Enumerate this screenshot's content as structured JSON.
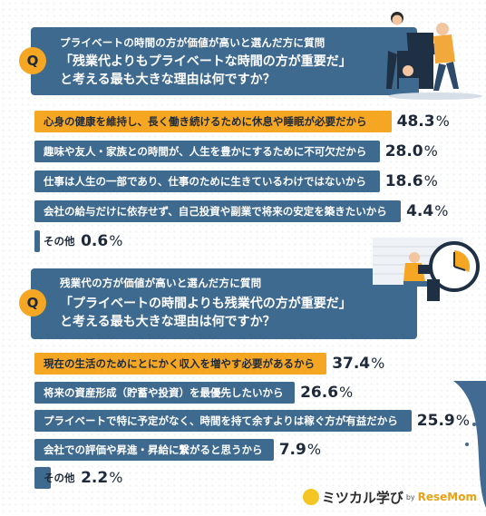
{
  "colors": {
    "dark_blue": "#3f6a8f",
    "orange": "#f5a623",
    "text": "#1e2a3a"
  },
  "q1": {
    "badge": "Q",
    "subtitle": "プライベートの時間の方が価値が高いと選んだ方に質問",
    "line1": "「残業代よりもプライベートな時間の方が重要だ」",
    "line2": "と考える最も大きな理由は何ですか？"
  },
  "q2": {
    "badge": "Q",
    "subtitle": "残業代の方が価値が高いと選んだ方に質問",
    "line1": "「プライベートの時間よりも残業代の方が重要だ」",
    "line2": "と考える最も大きな理由は何ですか？"
  },
  "logo": {
    "brand": "ミツカル学び",
    "by": "by",
    "sub": "ReseMom"
  },
  "chart_data": [
    {
      "type": "bar",
      "orientation": "horizontal",
      "categories": [
        "心身の健康を維持し、長く働き続けるために休息や睡眠が必要だから",
        "趣味や友人・家族との時間が、人生を豊かにするために不可欠だから",
        "仕事は人生の一部であり、仕事のために生きているわけではないから",
        "会社の給与だけに依存せず、自己投資や副業で将来の安定を築きたいから",
        "その他"
      ],
      "values": [
        48.3,
        28.0,
        18.6,
        4.4,
        0.6
      ],
      "value_labels": [
        "48.3",
        "28.0",
        "18.6",
        "4.4",
        "0.6"
      ],
      "unit": "%"
    },
    {
      "type": "bar",
      "orientation": "horizontal",
      "categories": [
        "現在の生活のためにとにかく収入を増やす必要があるから",
        "将来の資産形成（貯蓄や投資）を最優先したいから",
        "プライベートで特に予定がなく、時間を持て余すよりは稼ぐ方が有益だから",
        "会社での評価や昇進・昇給に繋がると思うから",
        "その他"
      ],
      "values": [
        37.4,
        26.6,
        25.9,
        7.9,
        2.2
      ],
      "value_labels": [
        "37.4",
        "26.6",
        "25.9",
        "7.9",
        "2.2"
      ],
      "unit": "%"
    }
  ]
}
